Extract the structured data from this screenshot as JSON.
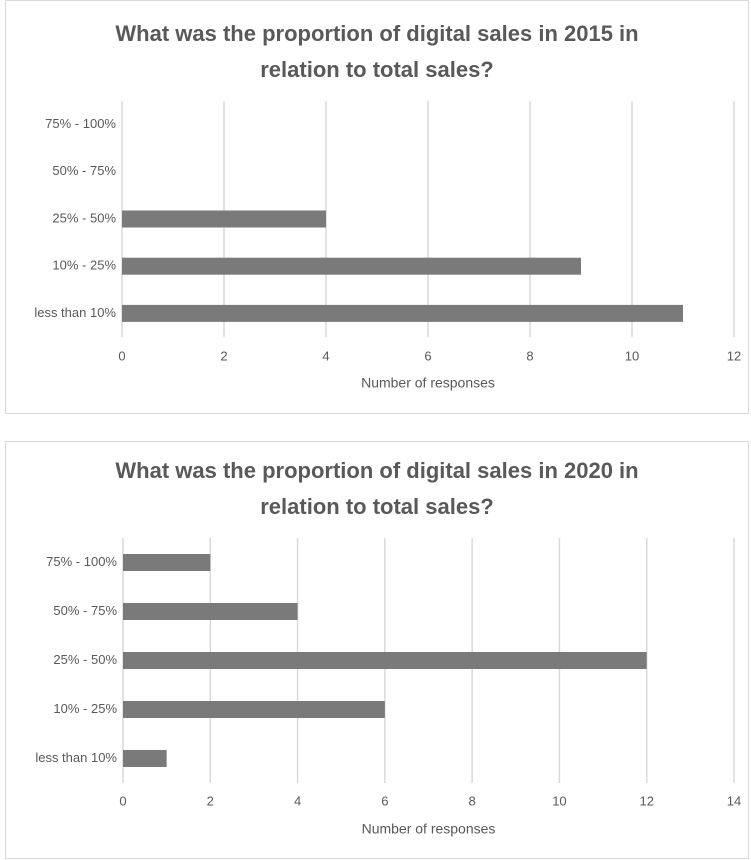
{
  "chart_data": [
    {
      "type": "bar",
      "orientation": "horizontal",
      "title": "What was the proportion of digital sales in 2015 in relation to total sales?",
      "xlabel": "Number of responses",
      "categories": [
        "less than 10%",
        "10% - 25%",
        "25% - 50%",
        "50% - 75%",
        "75% - 100%"
      ],
      "values": [
        11,
        9,
        4,
        0,
        0
      ],
      "color": "#7a7a7a",
      "xlim": [
        0,
        12
      ],
      "xticks": [
        0,
        2,
        4,
        6,
        8,
        10,
        12
      ],
      "grid": true
    },
    {
      "type": "bar",
      "orientation": "horizontal",
      "title": "What was the proportion of digital sales in 2020 in relation to total sales?",
      "xlabel": "Number of responses",
      "categories": [
        "less than 10%",
        "10% - 25%",
        "25% - 50%",
        "50% - 75%",
        "75% - 100%"
      ],
      "values": [
        1,
        6,
        12,
        4,
        2
      ],
      "color": "#7a7a7a",
      "xlim": [
        0,
        14
      ],
      "xticks": [
        0,
        2,
        4,
        6,
        8,
        10,
        12,
        14
      ],
      "grid": true
    }
  ]
}
